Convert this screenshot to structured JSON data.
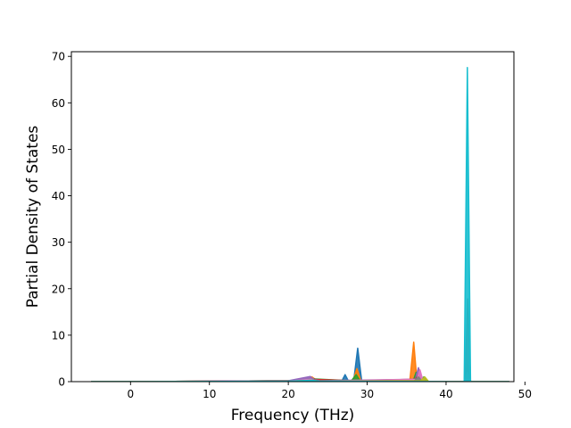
{
  "chart_data": {
    "type": "line",
    "title": "",
    "xlabel": "Frequency (THz)",
    "ylabel": "Partial Density of States",
    "xlim": [
      -7.5,
      48.6
    ],
    "ylim": [
      0,
      71
    ],
    "xticks": [
      0,
      10,
      20,
      30,
      40,
      50
    ],
    "xtick_labels": [
      "0",
      "10",
      "20",
      "30",
      "40",
      "50"
    ],
    "yticks": [
      0,
      10,
      20,
      30,
      40,
      50,
      60,
      70
    ],
    "ytick_labels": [
      "0",
      "10",
      "20",
      "30",
      "40",
      "50",
      "60",
      "70"
    ],
    "grid": false,
    "series": [
      {
        "color": "#1f77b4",
        "x": [
          -5,
          1,
          20,
          22.5,
          23,
          23.5,
          25,
          26.8,
          27.2,
          27.6,
          28.3,
          28.8,
          29.3,
          35.5,
          36,
          36.5,
          42.3,
          42.7,
          43.1,
          48
        ],
        "y": [
          0,
          0,
          0.2,
          0.5,
          0.9,
          0.4,
          0.3,
          0.2,
          1.5,
          0.2,
          0.3,
          7.2,
          0.2,
          0,
          0.8,
          0,
          0,
          1.2,
          0,
          0
        ]
      },
      {
        "color": "#ff7f0e",
        "x": [
          -5,
          1,
          20,
          22.5,
          23,
          23.5,
          28.2,
          28.7,
          29.2,
          35.4,
          35.9,
          36.3,
          36.8,
          42.4,
          42.7,
          43.0,
          48
        ],
        "y": [
          0,
          0,
          0.2,
          0.5,
          1.0,
          0.4,
          0.2,
          2.8,
          0.2,
          0,
          8.5,
          0.3,
          0,
          0,
          4.8,
          0,
          0
        ]
      },
      {
        "color": "#2ca02c",
        "x": [
          -5,
          1,
          20,
          23,
          28,
          28.6,
          29.1,
          35.8,
          36.2,
          36.7,
          37.2,
          37.6,
          42.4,
          42.7,
          43.0,
          48
        ],
        "y": [
          0,
          0,
          0.2,
          0.6,
          0.2,
          1.5,
          0.2,
          0,
          2.0,
          0.5,
          1.0,
          0,
          0,
          3.5,
          0,
          0
        ]
      },
      {
        "color": "#d62728",
        "x": [
          -5,
          1,
          20,
          23,
          28,
          36,
          36.6,
          37.1,
          42.4,
          42.7,
          43.0,
          48
        ],
        "y": [
          0,
          0,
          0.2,
          0.5,
          0.2,
          0.5,
          2.0,
          0,
          0,
          2.5,
          0,
          0
        ]
      },
      {
        "color": "#9467bd",
        "x": [
          -5,
          1,
          20,
          22.8,
          23.3,
          24,
          36.1,
          36.5,
          36.9,
          37.4,
          48
        ],
        "y": [
          0,
          0,
          0.2,
          1.1,
          0.4,
          0.2,
          0.5,
          3.0,
          0.8,
          0,
          0
        ]
      },
      {
        "color": "#8c564b",
        "x": [
          -5,
          1,
          20,
          23,
          24,
          36,
          36.5,
          37,
          42.4,
          42.75,
          43.1,
          48
        ],
        "y": [
          0,
          0,
          0.1,
          0.4,
          0.1,
          0.3,
          1.5,
          0,
          0,
          17.8,
          0,
          0
        ]
      },
      {
        "color": "#e377c2",
        "x": [
          -5,
          1,
          20,
          22.9,
          23.5,
          36.3,
          36.7,
          37.1,
          48
        ],
        "y": [
          0,
          0,
          0.1,
          0.5,
          0.1,
          0.5,
          2.5,
          0,
          0
        ]
      },
      {
        "color": "#7f7f7f",
        "x": [
          -5,
          1,
          20,
          23,
          24,
          36,
          36.5,
          37,
          42.4,
          42.7,
          43.0,
          48
        ],
        "y": [
          0,
          0,
          0.1,
          0.3,
          0.1,
          0.2,
          1.0,
          0,
          0,
          2.0,
          0,
          0
        ]
      },
      {
        "color": "#bcbd22",
        "x": [
          -5,
          1,
          20,
          23,
          24,
          36.8,
          37.3,
          37.8,
          48
        ],
        "y": [
          0,
          0,
          0.1,
          0.3,
          0.1,
          0.2,
          1.0,
          0,
          0
        ]
      },
      {
        "color": "#17becf",
        "x": [
          -5,
          1,
          20,
          23,
          24,
          42.3,
          42.7,
          43.1,
          48
        ],
        "y": [
          0,
          0,
          0.1,
          0.3,
          0.1,
          0,
          67.6,
          0,
          0
        ]
      }
    ]
  }
}
